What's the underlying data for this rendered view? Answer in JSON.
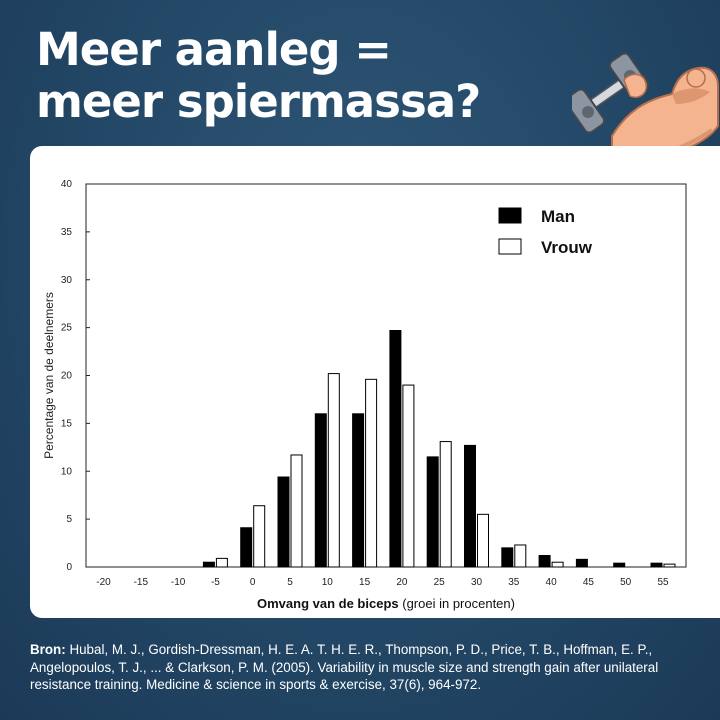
{
  "header": {
    "title_line1": "Meer aanleg =",
    "title_line2": "meer spiermassa?"
  },
  "icons": {
    "dumbbell": "dumbbell-icon",
    "arm": "flexed-arm-icon"
  },
  "colors": {
    "background": "#234766",
    "card": "#ffffff",
    "man_bar": "#000000",
    "vrouw_bar": "#ffffff",
    "skin": "#f3b48f",
    "skin_shade": "#de9671",
    "dumbbell": "#8d96a0"
  },
  "source": {
    "label": "Bron:",
    "text": "Hubal, M. J., Gordish-Dressman, H. E. A. T. H. E. R., Thompson, P. D., Price, T. B., Hoffman, E. P., Angelopoulos, T. J., ... & Clarkson, P. M. (2005). Variability in muscle size and strength gain after unilateral resistance training. Medicine & science in sports & exercise, 37(6), 964-972."
  },
  "chart_data": {
    "type": "bar",
    "title": "",
    "xlabel_bold": "Omvang van de biceps",
    "xlabel_rest": " (groei in procenten)",
    "ylabel": "Percentage van de deelnemers",
    "ylim": [
      0,
      40
    ],
    "yticks": [
      "0",
      "5",
      "10",
      "15",
      "20",
      "25",
      "30",
      "35",
      "40"
    ],
    "categories": [
      "-20",
      "-15",
      "-10",
      "-5",
      "0",
      "5",
      "10",
      "15",
      "20",
      "25",
      "30",
      "35",
      "40",
      "45",
      "50",
      "55"
    ],
    "legend_position": "top-right",
    "series": [
      {
        "name": "Man",
        "values": [
          0,
          0,
          0,
          0.5,
          4.1,
          9.4,
          16.0,
          16.0,
          24.7,
          11.5,
          12.7,
          2.0,
          1.2,
          0.8,
          0.4,
          0.4
        ]
      },
      {
        "name": "Vrouw",
        "values": [
          0,
          0,
          0,
          0.9,
          6.4,
          11.7,
          20.2,
          19.6,
          19.0,
          13.1,
          5.5,
          2.3,
          0.5,
          0,
          0,
          0.3
        ]
      }
    ]
  }
}
